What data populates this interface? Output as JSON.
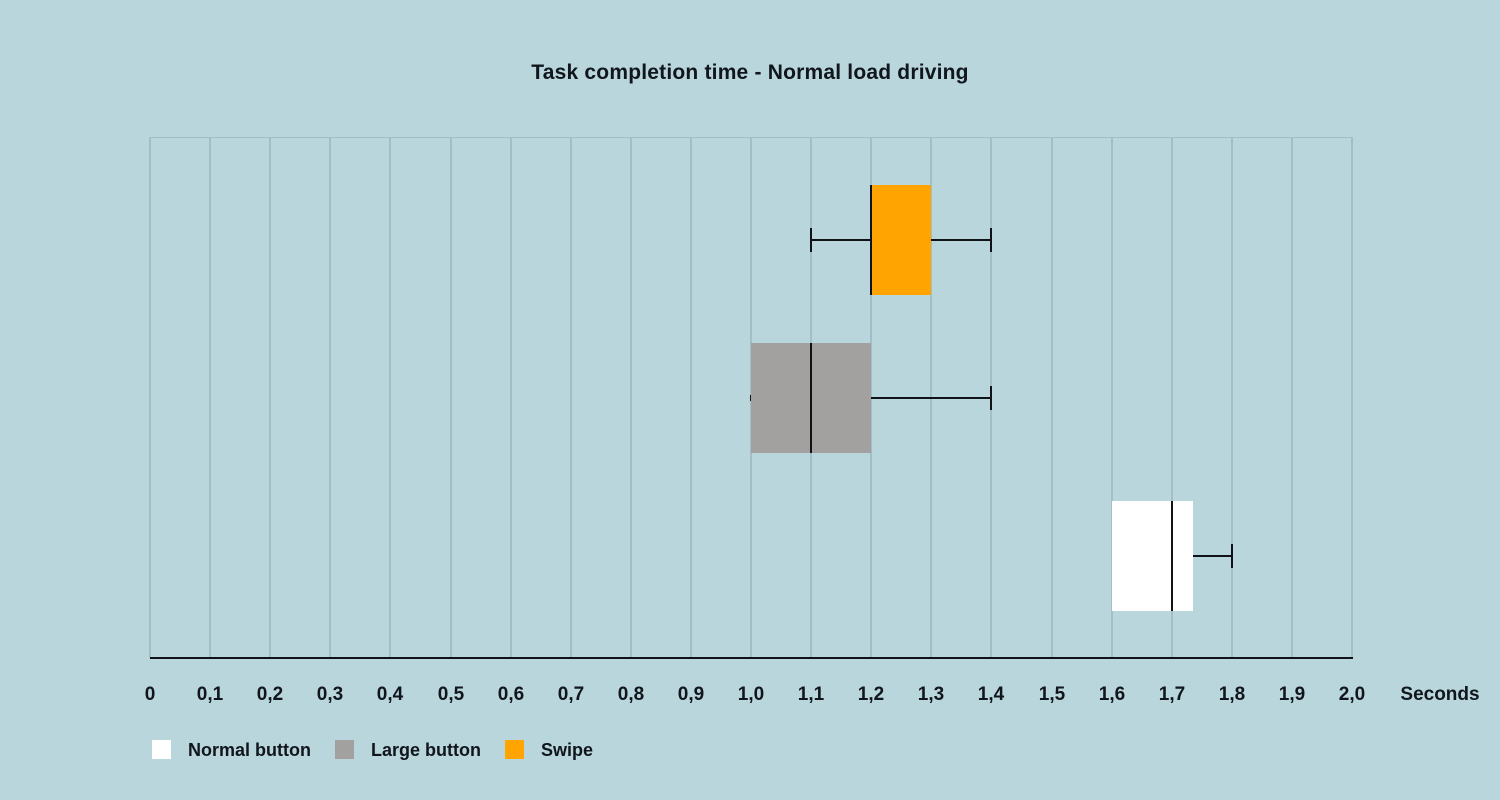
{
  "chart_data": {
    "type": "boxplot",
    "orientation": "horizontal",
    "title": "Task completion time - Normal load driving",
    "xlabel": "Seconds",
    "xlim": [
      0,
      2
    ],
    "tick_step": 0.1,
    "tick_labels": [
      "0",
      "0,1",
      "0,2",
      "0,3",
      "0,4",
      "0,5",
      "0,6",
      "0,7",
      "0,8",
      "0,9",
      "1,0",
      "1,1",
      "1,2",
      "1,3",
      "1,4",
      "1,5",
      "1,6",
      "1,7",
      "1,8",
      "1,9",
      "2,0"
    ],
    "grid": "vertical-only",
    "legend_position": "bottom-left",
    "series": [
      {
        "name": "Swipe",
        "color": "#ffa400",
        "min": 1.1,
        "q1": 1.2,
        "median": 1.2,
        "q3": 1.3,
        "max": 1.4,
        "min_cap": "full"
      },
      {
        "name": "Large button",
        "color": "#a3a0a0",
        "min": 1.0,
        "q1": 1.0,
        "median": 1.1,
        "q3": 1.2,
        "max": 1.4,
        "min_cap": "tick"
      },
      {
        "name": "Normal button",
        "color": "#ffffff",
        "min": 1.6,
        "q1": 1.6,
        "median": 1.7,
        "q3": 1.735,
        "max": 1.8,
        "min_cap": "none"
      }
    ],
    "legend": [
      {
        "label": "Normal button",
        "color": "#ffffff"
      },
      {
        "label": "Large button",
        "color": "#a3a0a0"
      },
      {
        "label": "Swipe",
        "color": "#ffa400"
      }
    ]
  },
  "colors": {
    "background": "#b9d6dd",
    "gridline": "#a4bec6",
    "axis": "#0f1318",
    "text": "#11151c"
  }
}
